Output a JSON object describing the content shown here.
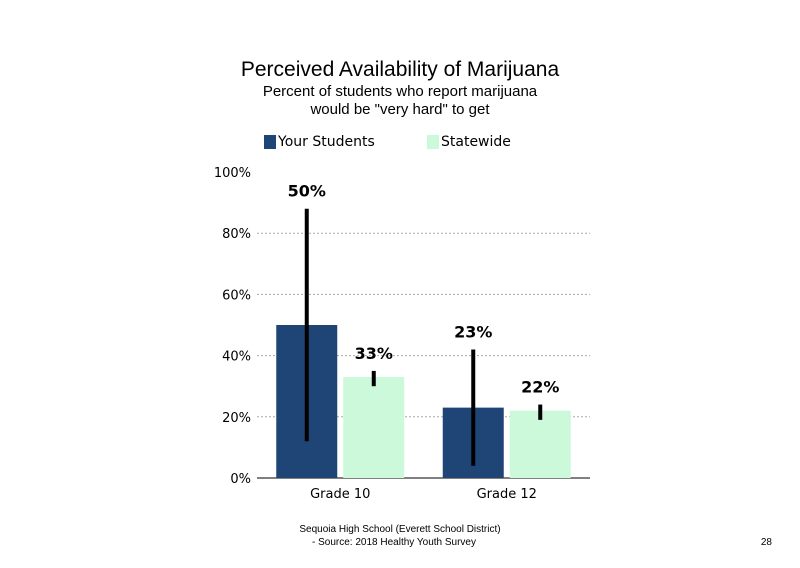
{
  "chart_data": {
    "type": "bar",
    "title": "Perceived Availability of Marijuana",
    "subtitle_lines": [
      "Percent of students who report marijuana",
      "would be \"very hard\" to get"
    ],
    "categories": [
      "Grade 10",
      "Grade 12"
    ],
    "series": [
      {
        "name": "Your Students",
        "color": "#1f4577",
        "values": [
          50,
          23
        ],
        "value_labels": [
          "50%",
          "23%"
        ],
        "error_low": [
          12,
          4
        ],
        "error_high": [
          88,
          42
        ]
      },
      {
        "name": "Statewide",
        "color": "#ccf9da",
        "values": [
          33,
          22
        ],
        "value_labels": [
          "33%",
          "22%"
        ],
        "error_low": [
          30,
          19
        ],
        "error_high": [
          35,
          24
        ]
      }
    ],
    "ylim": [
      0,
      100
    ],
    "yticks": [
      0,
      20,
      40,
      60,
      80,
      100
    ],
    "ytick_labels": [
      "0%",
      "20%",
      "40%",
      "60%",
      "80%",
      "100%"
    ],
    "grid": "dashed horizontal",
    "legend_position": "top"
  },
  "footer": {
    "line1": "Sequoia High School (Everett School District)",
    "line2": "- Source: 2018 Healthy Youth Survey"
  },
  "page_number": "28"
}
